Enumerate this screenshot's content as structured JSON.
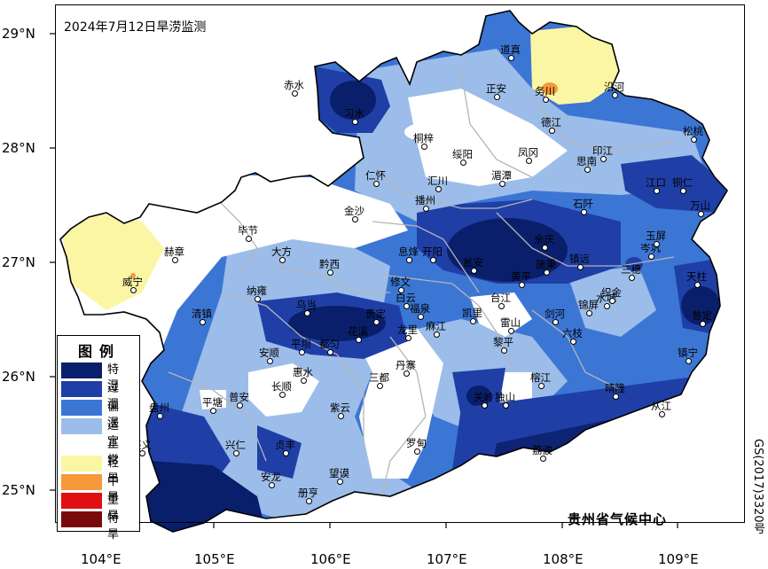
{
  "map": {
    "title": "2024年7月12日旱涝监测",
    "credit": "贵州省气候中心",
    "side_code": "GS(2017)3320号",
    "latitude_ticks": [
      "29°N",
      "28°N",
      "27°N",
      "26°N",
      "25°N"
    ],
    "longitude_ticks": [
      "104°E",
      "105°E",
      "106°E",
      "107°E",
      "108°E",
      "109°E"
    ]
  },
  "legend": {
    "title": "图例",
    "items": [
      {
        "label": "特湿",
        "color": "#0a1f6b"
      },
      {
        "label": "过湿",
        "color": "#1f3fa6"
      },
      {
        "label": "偏湿",
        "color": "#3c76d4"
      },
      {
        "label": "适宜",
        "color": "#9cbde9"
      },
      {
        "label": "正常",
        "color": "#ffffff"
      },
      {
        "label": "轻旱",
        "color": "#fbf6a3"
      },
      {
        "label": "中旱",
        "color": "#f5993b"
      },
      {
        "label": "重旱",
        "color": "#e01010"
      },
      {
        "label": "特旱",
        "color": "#7a0a0a"
      }
    ]
  },
  "places": [
    {
      "name": "道真"
    },
    {
      "name": "赤水"
    },
    {
      "name": "习水"
    },
    {
      "name": "正安"
    },
    {
      "name": "务川"
    },
    {
      "name": "沿河"
    },
    {
      "name": "德江"
    },
    {
      "name": "桐梓"
    },
    {
      "name": "绥阳"
    },
    {
      "name": "凤冈"
    },
    {
      "name": "印江"
    },
    {
      "name": "思南"
    },
    {
      "name": "松桃"
    },
    {
      "name": "仁怀"
    },
    {
      "name": "湄潭"
    },
    {
      "name": "汇川"
    },
    {
      "name": "播州"
    },
    {
      "name": "金沙"
    },
    {
      "name": "石阡"
    },
    {
      "name": "江口"
    },
    {
      "name": "铜仁"
    },
    {
      "name": "万山"
    },
    {
      "name": "毕节"
    },
    {
      "name": "赫章"
    },
    {
      "name": "大方"
    },
    {
      "name": "黔西"
    },
    {
      "name": "息烽"
    },
    {
      "name": "开阳"
    },
    {
      "name": "瓮安"
    },
    {
      "name": "余庆"
    },
    {
      "name": "施秉"
    },
    {
      "name": "镇远"
    },
    {
      "name": "岑巩"
    },
    {
      "name": "玉屏"
    },
    {
      "name": "三穗"
    },
    {
      "name": "天柱"
    },
    {
      "name": "威宁"
    },
    {
      "name": "纳雍"
    },
    {
      "name": "修文"
    },
    {
      "name": "白云"
    },
    {
      "name": "黄平"
    },
    {
      "name": "水城"
    },
    {
      "name": "织金"
    },
    {
      "name": "清镇"
    },
    {
      "name": "乌当"
    },
    {
      "name": "贵定"
    },
    {
      "name": "福泉"
    },
    {
      "name": "凯里"
    },
    {
      "name": "台江"
    },
    {
      "name": "剑河"
    },
    {
      "name": "锦屏"
    },
    {
      "name": "普定"
    },
    {
      "name": "平坝"
    },
    {
      "name": "花溪"
    },
    {
      "name": "龙里"
    },
    {
      "name": "麻江"
    },
    {
      "name": "雷山"
    },
    {
      "name": "六枝"
    },
    {
      "name": "安顺"
    },
    {
      "name": "都匀"
    },
    {
      "name": "黎平"
    },
    {
      "name": "镇宁"
    },
    {
      "name": "惠水"
    },
    {
      "name": "丹寨"
    },
    {
      "name": "关岭"
    },
    {
      "name": "长顺"
    },
    {
      "name": "三都"
    },
    {
      "name": "榕江"
    },
    {
      "name": "晴隆"
    },
    {
      "name": "普安"
    },
    {
      "name": "平塘"
    },
    {
      "name": "独山"
    },
    {
      "name": "从江"
    },
    {
      "name": "紫云"
    },
    {
      "name": "盘州"
    },
    {
      "name": "兴仁"
    },
    {
      "name": "贞丰"
    },
    {
      "name": "罗甸"
    },
    {
      "name": "荔波"
    },
    {
      "name": "兴义"
    },
    {
      "name": "安龙"
    },
    {
      "name": "望谟"
    },
    {
      "name": "册亨"
    }
  ]
}
